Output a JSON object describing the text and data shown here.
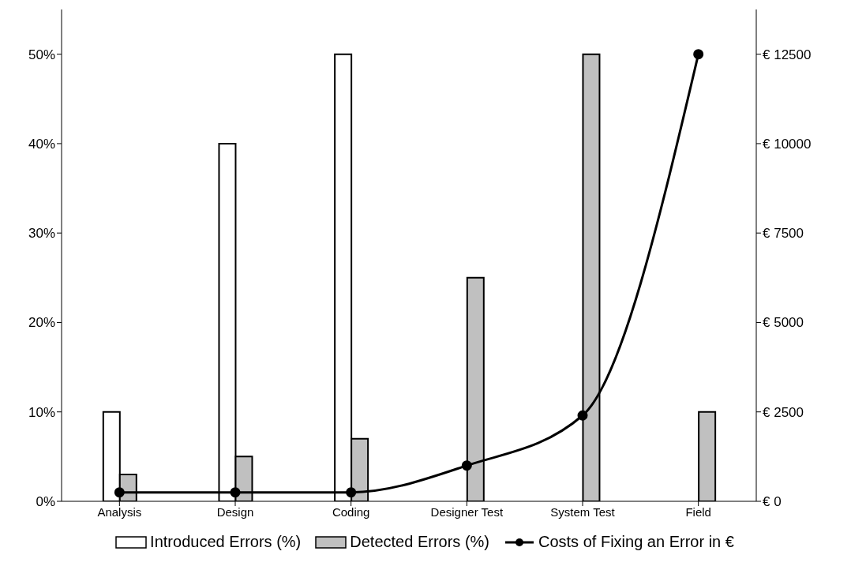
{
  "chart_data": {
    "type": "bar",
    "categories": [
      "Analysis",
      "Design",
      "Coding",
      "Designer Test",
      "System Test",
      "Field"
    ],
    "series": [
      {
        "name": "Introduced Errors (%)",
        "color": "#ffffff",
        "values": [
          10,
          40,
          50,
          null,
          null,
          null
        ]
      },
      {
        "name": "Detected Errors (%)",
        "color": "#c0c0c0",
        "values": [
          3,
          5,
          7,
          25,
          50,
          10
        ]
      },
      {
        "name": "Costs of Fixing an Error in €",
        "type": "line",
        "axis": "y2",
        "color": "#000000",
        "marker": "circle",
        "values": [
          250,
          250,
          250,
          1000,
          2400,
          12500
        ]
      }
    ],
    "ylim": [
      0,
      55
    ],
    "yticks": [
      {
        "value": 0,
        "label": "0%"
      },
      {
        "value": 10,
        "label": "10%"
      },
      {
        "value": 20,
        "label": "20%"
      },
      {
        "value": 30,
        "label": "30%"
      },
      {
        "value": 40,
        "label": "40%"
      },
      {
        "value": 50,
        "label": "50%"
      }
    ],
    "y2lim": [
      0,
      13750
    ],
    "y2ticks": [
      {
        "value": 0,
        "label": "€ 0"
      },
      {
        "value": 2500,
        "label": "€ 2500"
      },
      {
        "value": 5000,
        "label": "€ 5000"
      },
      {
        "value": 7500,
        "label": "€ 7500"
      },
      {
        "value": 10000,
        "label": "€ 10000"
      },
      {
        "value": 12500,
        "label": "€ 12500"
      }
    ],
    "legend": "bottom",
    "grid": false
  }
}
